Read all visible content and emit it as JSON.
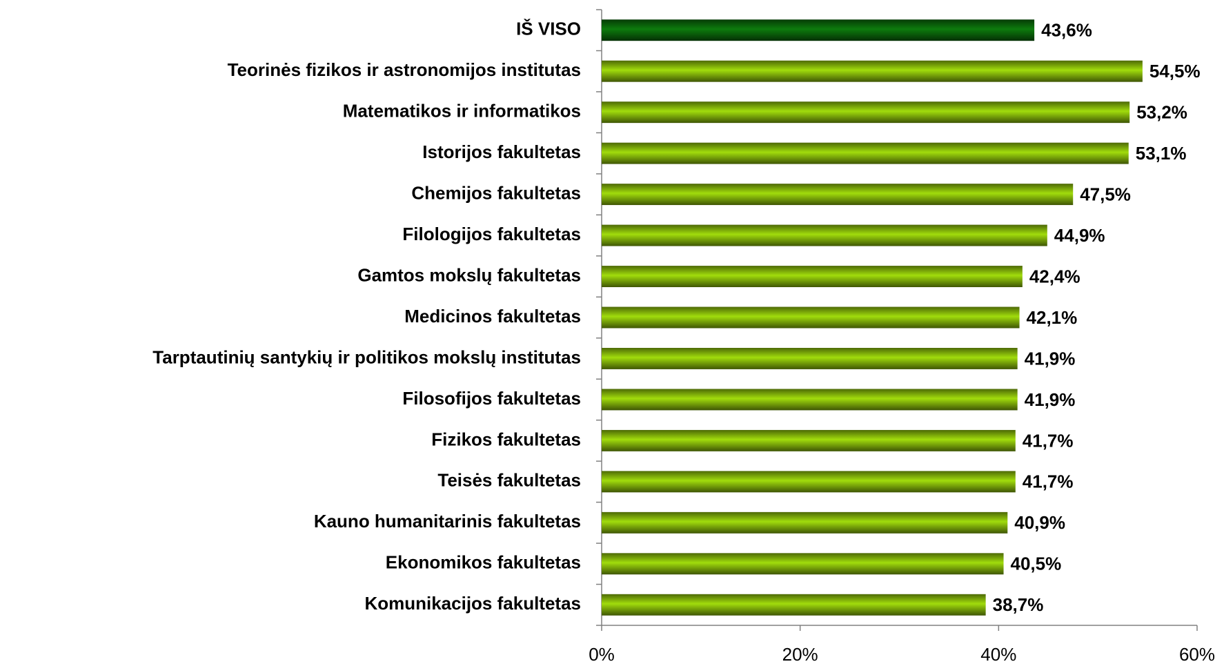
{
  "chart_data": {
    "type": "barh",
    "categories": [
      "IŠ VISO",
      "Teorinės fizikos ir astronomijos institutas",
      "Matematikos ir informatikos",
      "Istorijos fakultetas",
      "Chemijos fakultetas",
      "Filologijos fakultetas",
      "Gamtos mokslų fakultetas",
      "Medicinos fakultetas",
      "Tarptautinių santykių ir politikos mokslų institutas",
      "Filosofijos fakultetas",
      "Fizikos fakultetas",
      "Teisės fakultetas",
      "Kauno humanitarinis fakultetas",
      "Ekonomikos fakultetas",
      "Komunikacijos fakultetas"
    ],
    "values": [
      43.6,
      54.5,
      53.2,
      53.1,
      47.5,
      44.9,
      42.4,
      42.1,
      41.9,
      41.9,
      41.7,
      41.7,
      40.9,
      40.5,
      38.7
    ],
    "value_labels": [
      "43,6%",
      "54,5%",
      "53,2%",
      "53,1%",
      "47,5%",
      "44,9%",
      "42,4%",
      "42,1%",
      "41,9%",
      "41,9%",
      "41,7%",
      "41,7%",
      "40,9%",
      "40,5%",
      "38,7%"
    ],
    "colors": [
      "#0b6b0b",
      "#8cbf0a",
      "#8cbf0a",
      "#8cbf0a",
      "#8cbf0a",
      "#8cbf0a",
      "#8cbf0a",
      "#8cbf0a",
      "#8cbf0a",
      "#8cbf0a",
      "#8cbf0a",
      "#8cbf0a",
      "#8cbf0a",
      "#8cbf0a",
      "#8cbf0a"
    ],
    "xlim": [
      0,
      60
    ],
    "xticks": [
      {
        "value": 0,
        "label": "0%"
      },
      {
        "value": 20,
        "label": "20%"
      },
      {
        "value": 40,
        "label": "40%"
      },
      {
        "value": 60,
        "label": "60%"
      }
    ]
  }
}
